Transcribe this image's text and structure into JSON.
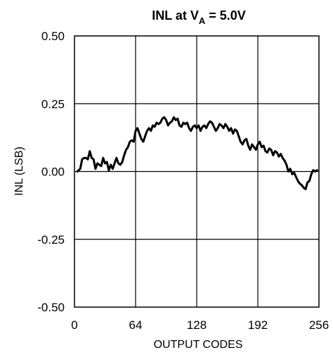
{
  "chart_data": {
    "type": "line",
    "title": {
      "prefix": "INL at V",
      "subscript": "A",
      "suffix": " = 5.0V"
    },
    "xlabel": "OUTPUT CODES",
    "ylabel": "INL (LSB)",
    "xlim": [
      0,
      256
    ],
    "ylim": [
      -0.5,
      0.5
    ],
    "xticks": [
      0,
      64,
      128,
      192,
      256
    ],
    "yticks": [
      0.5,
      0.25,
      0.0,
      -0.25,
      -0.5
    ],
    "xtick_labels": [
      "0",
      "64",
      "128",
      "192",
      "256"
    ],
    "ytick_labels": [
      "0.50",
      "0.25",
      "0.00",
      "-0.25",
      "-0.50"
    ],
    "grid": true,
    "series": [
      {
        "x": [
          3,
          6,
          8,
          10,
          12,
          14,
          16,
          18,
          20,
          22,
          24,
          26,
          28,
          30,
          32,
          34,
          36,
          38,
          40,
          42,
          44,
          46,
          48,
          50,
          52,
          54,
          56,
          58,
          60,
          62,
          64,
          66,
          68,
          70,
          72,
          74,
          76,
          78,
          80,
          82,
          84,
          86,
          88,
          90,
          92,
          94,
          96,
          98,
          100,
          102,
          104,
          106,
          108,
          110,
          112,
          114,
          116,
          118,
          120,
          122,
          124,
          126,
          128,
          130,
          132,
          134,
          136,
          138,
          140,
          142,
          144,
          146,
          148,
          150,
          152,
          154,
          156,
          158,
          160,
          162,
          164,
          166,
          168,
          170,
          172,
          174,
          176,
          178,
          180,
          182,
          184,
          186,
          188,
          190,
          192,
          194,
          196,
          198,
          200,
          202,
          204,
          206,
          208,
          210,
          212,
          214,
          216,
          218,
          220,
          222,
          224,
          226,
          228,
          230,
          232,
          234,
          236,
          238,
          240,
          242,
          244,
          246,
          248,
          250,
          252,
          254
        ],
        "y": [
          0.0,
          0.01,
          0.045,
          0.05,
          0.05,
          0.045,
          0.075,
          0.05,
          0.045,
          0.01,
          0.03,
          0.025,
          0.02,
          0.05,
          0.03,
          0.035,
          0.005,
          0.025,
          0.01,
          0.03,
          0.05,
          0.03,
          0.025,
          0.035,
          0.06,
          0.08,
          0.09,
          0.11,
          0.115,
          0.11,
          0.15,
          0.16,
          0.14,
          0.12,
          0.11,
          0.13,
          0.15,
          0.16,
          0.15,
          0.17,
          0.165,
          0.18,
          0.175,
          0.18,
          0.195,
          0.2,
          0.19,
          0.17,
          0.18,
          0.185,
          0.2,
          0.19,
          0.195,
          0.17,
          0.165,
          0.18,
          0.175,
          0.18,
          0.16,
          0.15,
          0.165,
          0.17,
          0.16,
          0.17,
          0.15,
          0.165,
          0.17,
          0.16,
          0.175,
          0.185,
          0.18,
          0.165,
          0.15,
          0.16,
          0.175,
          0.17,
          0.16,
          0.175,
          0.165,
          0.15,
          0.16,
          0.14,
          0.155,
          0.15,
          0.13,
          0.11,
          0.1,
          0.115,
          0.12,
          0.095,
          0.08,
          0.1,
          0.09,
          0.08,
          0.1,
          0.11,
          0.09,
          0.095,
          0.075,
          0.07,
          0.085,
          0.08,
          0.06,
          0.075,
          0.07,
          0.055,
          0.065,
          0.05,
          0.04,
          0.025,
          0.0,
          0.01,
          -0.01,
          -0.005,
          -0.02,
          -0.035,
          -0.045,
          -0.05,
          -0.06,
          -0.065,
          -0.04,
          -0.035,
          -0.01,
          0.005,
          0.0,
          0.005
        ]
      }
    ]
  }
}
